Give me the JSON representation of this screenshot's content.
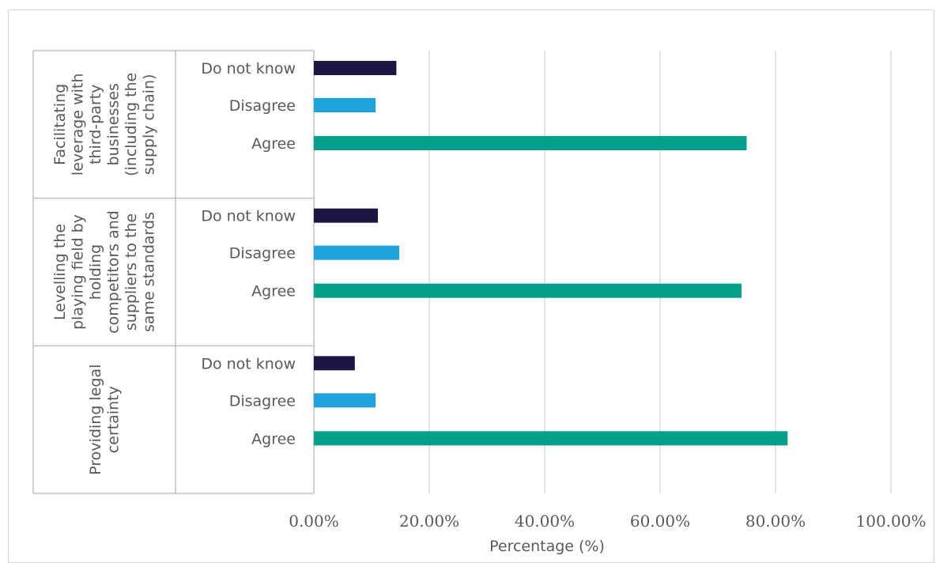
{
  "chart_data": {
    "type": "bar",
    "orientation": "horizontal",
    "xlabel": "Percentage (%)",
    "xlim": [
      0,
      100
    ],
    "x_ticks": [
      "0.00%",
      "20.00%",
      "40.00%",
      "60.00%",
      "80.00%",
      "100.00%"
    ],
    "grid": true,
    "groups": [
      {
        "label_lines": [
          "Facilitating",
          "leverage with",
          "third-party",
          "businesses",
          "(including the",
          "supply chain)"
        ],
        "bars": [
          {
            "category": "Do not know",
            "value": 14.3,
            "color": "#1c1645"
          },
          {
            "category": "Disagree",
            "value": 10.7,
            "color": "#1fa3dc"
          },
          {
            "category": "Agree",
            "value": 75.0,
            "color": "#00a08a"
          }
        ]
      },
      {
        "label_lines": [
          "Levelling the",
          "playing field by",
          "holding",
          "competitors and",
          "suppliers to the",
          "same standards"
        ],
        "bars": [
          {
            "category": "Do not know",
            "value": 11.1,
            "color": "#1c1645"
          },
          {
            "category": "Disagree",
            "value": 14.8,
            "color": "#1fa3dc"
          },
          {
            "category": "Agree",
            "value": 74.1,
            "color": "#00a08a"
          }
        ]
      },
      {
        "label_lines": [
          "Providing legal",
          "certainty"
        ],
        "bars": [
          {
            "category": "Do not know",
            "value": 7.1,
            "color": "#1c1645"
          },
          {
            "category": "Disagree",
            "value": 10.7,
            "color": "#1fa3dc"
          },
          {
            "category": "Agree",
            "value": 82.1,
            "color": "#00a08a"
          }
        ]
      }
    ]
  }
}
